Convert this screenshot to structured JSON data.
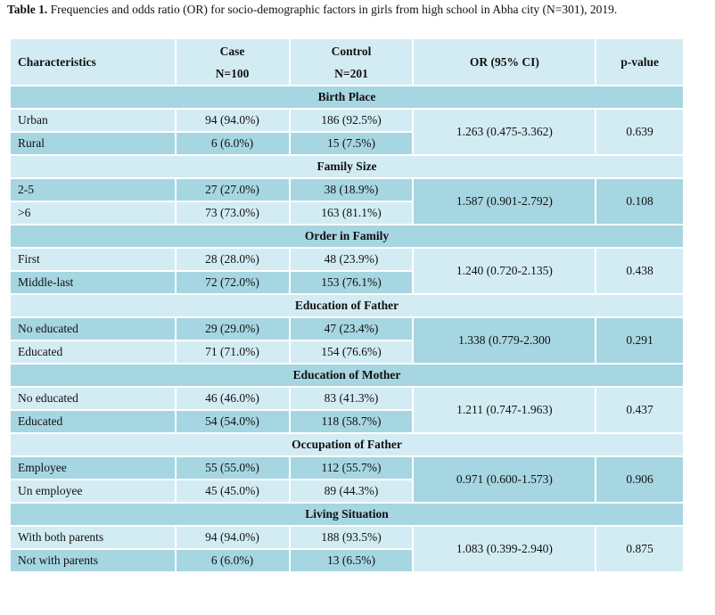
{
  "caption": {
    "label": "Table 1.",
    "text": "Frequencies and odds ratio (OR) for socio-demographic factors in girls from high school in Abha city (N=301), 2019."
  },
  "table": {
    "header": [
      [
        "Characteristics"
      ],
      [
        "Case",
        "N=100"
      ],
      [
        "Control",
        "N=201"
      ],
      [
        "OR (95% CI)"
      ],
      [
        "p-value"
      ]
    ],
    "groups": [
      {
        "title": "Birth Place",
        "rows": [
          [
            "Urban",
            "94 (94.0%)",
            "186 (92.5%)"
          ],
          [
            "Rural",
            "6 (6.0%)",
            "15 (7.5%)"
          ]
        ],
        "or": "1.263 (0.475-3.362)",
        "p": "0.639"
      },
      {
        "title": "Family Size",
        "rows": [
          [
            "2-5",
            "27 (27.0%)",
            "38 (18.9%)"
          ],
          [
            ">6",
            "73 (73.0%)",
            "163 (81.1%)"
          ]
        ],
        "or": "1.587 (0.901-2.792)",
        "p": "0.108"
      },
      {
        "title": "Order in Family",
        "rows": [
          [
            "First",
            "28 (28.0%)",
            "48 (23.9%)"
          ],
          [
            "Middle-last",
            "72 (72.0%)",
            "153 (76.1%)"
          ]
        ],
        "or": "1.240 (0.720-2.135)",
        "p": "0.438"
      },
      {
        "title": "Education of Father",
        "rows": [
          [
            "No educated",
            "29 (29.0%)",
            "47 (23.4%)"
          ],
          [
            "Educated",
            "71 (71.0%)",
            "154 (76.6%)"
          ]
        ],
        "or": "1.338 (0.779-2.300",
        "p": "0.291"
      },
      {
        "title": "Education of Mother",
        "rows": [
          [
            "No educated",
            "46 (46.0%)",
            "83 (41.3%)"
          ],
          [
            "Educated",
            "54 (54.0%)",
            "118 (58.7%)"
          ]
        ],
        "or": "1.211 (0.747-1.963)",
        "p": "0.437"
      },
      {
        "title": "Occupation of Father",
        "rows": [
          [
            "Employee",
            "55 (55.0%)",
            "112 (55.7%)"
          ],
          [
            "Un employee",
            "45 (45.0%)",
            "89 (44.3%)"
          ]
        ],
        "or": "0.971 (0.600-1.573)",
        "p": "0.906"
      },
      {
        "title": "Living Situation",
        "rows": [
          [
            "With both parents",
            "94 (94.0%)",
            "188 (93.5%)"
          ],
          [
            "Not with parents",
            "6 (6.0%)",
            "13 (6.5%)"
          ]
        ],
        "or": "1.083 (0.399-2.940)",
        "p": "0.875"
      }
    ]
  }
}
